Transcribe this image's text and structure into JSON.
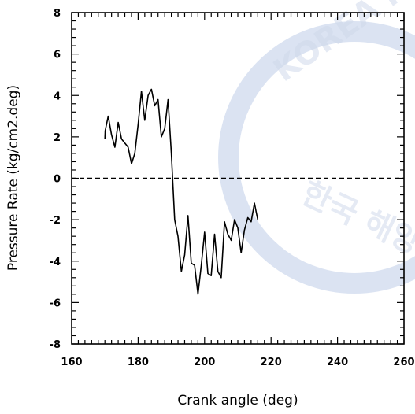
{
  "chart_data": {
    "type": "line",
    "title": "",
    "xlabel": "Crank angle (deg)",
    "ylabel": "Pressure Rate (kg/cm2.deg)",
    "xlim": [
      160,
      260
    ],
    "ylim": [
      -8,
      8
    ],
    "x_ticks": [
      160,
      180,
      200,
      220,
      240,
      260
    ],
    "y_ticks": [
      -8,
      -6,
      -4,
      -2,
      0,
      2,
      4,
      6,
      8
    ],
    "x_tick_labels": [
      "160",
      "180",
      "200",
      "220",
      "240",
      "260"
    ],
    "y_tick_labels": [
      "-8",
      "-6",
      "-4",
      "-2",
      "0",
      "2",
      "4",
      "6",
      "8"
    ],
    "reference_line": {
      "y": 0,
      "style": "dashed"
    },
    "grid": false,
    "series": [
      {
        "style": "solid",
        "x": [
          170,
          170.1,
          171,
          172,
          173,
          174,
          175,
          176,
          177,
          178,
          179,
          180,
          181,
          182,
          183,
          184,
          185,
          186,
          187,
          188,
          189,
          190,
          191,
          192,
          193,
          194,
          195,
          196,
          197,
          198,
          199,
          200,
          201,
          202,
          203,
          204,
          205,
          206,
          207,
          208,
          209,
          210,
          211,
          212,
          213,
          214,
          215,
          216
        ],
        "y": [
          1.9,
          2.3,
          3.0,
          2.1,
          1.5,
          2.7,
          1.9,
          1.7,
          1.5,
          0.7,
          1.2,
          2.6,
          4.2,
          2.8,
          4.0,
          4.3,
          3.5,
          3.8,
          2.0,
          2.4,
          3.8,
          1.2,
          -2.0,
          -2.8,
          -4.5,
          -3.7,
          -1.8,
          -4.1,
          -4.2,
          -5.6,
          -4.2,
          -2.6,
          -4.6,
          -4.7,
          -2.7,
          -4.5,
          -4.8,
          -2.1,
          -2.7,
          -3.0,
          -2.0,
          -2.4,
          -3.6,
          -2.5,
          -1.9,
          -2.1,
          -1.2,
          -2.0
        ]
      }
    ]
  },
  "watermark": {
    "text_top": "KOREA MARITIME",
    "text_hangul": "한국 해양"
  }
}
